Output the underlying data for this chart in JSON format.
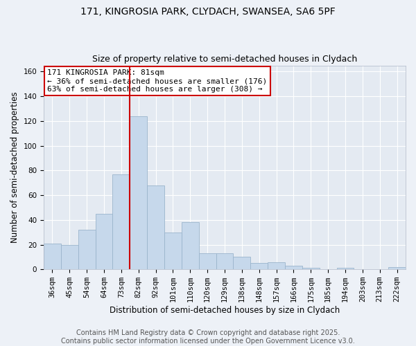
{
  "title_line1": "171, KINGROSIA PARK, CLYDACH, SWANSEA, SA6 5PF",
  "title_line2": "Size of property relative to semi-detached houses in Clydach",
  "xlabel": "Distribution of semi-detached houses by size in Clydach",
  "ylabel": "Number of semi-detached properties",
  "categories": [
    "36sqm",
    "45sqm",
    "54sqm",
    "64sqm",
    "73sqm",
    "82sqm",
    "92sqm",
    "101sqm",
    "110sqm",
    "120sqm",
    "129sqm",
    "138sqm",
    "148sqm",
    "157sqm",
    "166sqm",
    "175sqm",
    "185sqm",
    "194sqm",
    "203sqm",
    "213sqm",
    "222sqm"
  ],
  "values": [
    21,
    20,
    32,
    45,
    77,
    124,
    68,
    30,
    38,
    13,
    13,
    10,
    5,
    6,
    3,
    1,
    0,
    1,
    0,
    0,
    2
  ],
  "bar_color": "#c6d8eb",
  "bar_edge_color": "#9ab4cc",
  "property_bin_index": 5,
  "annotation_title": "171 KINGROSIA PARK: 81sqm",
  "annotation_line2": "← 36% of semi-detached houses are smaller (176)",
  "annotation_line3": "63% of semi-detached houses are larger (308) →",
  "annotation_box_color": "#ffffff",
  "annotation_box_edge_color": "#cc0000",
  "red_line_color": "#cc0000",
  "ylim": [
    0,
    165
  ],
  "yticks": [
    0,
    20,
    40,
    60,
    80,
    100,
    120,
    140,
    160
  ],
  "footer_line1": "Contains HM Land Registry data © Crown copyright and database right 2025.",
  "footer_line2": "Contains public sector information licensed under the Open Government Licence v3.0.",
  "background_color": "#edf1f7",
  "plot_background_color": "#e4eaf2",
  "grid_color": "#ffffff",
  "title_fontsize": 10,
  "subtitle_fontsize": 9,
  "axis_label_fontsize": 8.5,
  "tick_fontsize": 7.5,
  "annotation_fontsize": 8,
  "footer_fontsize": 7
}
